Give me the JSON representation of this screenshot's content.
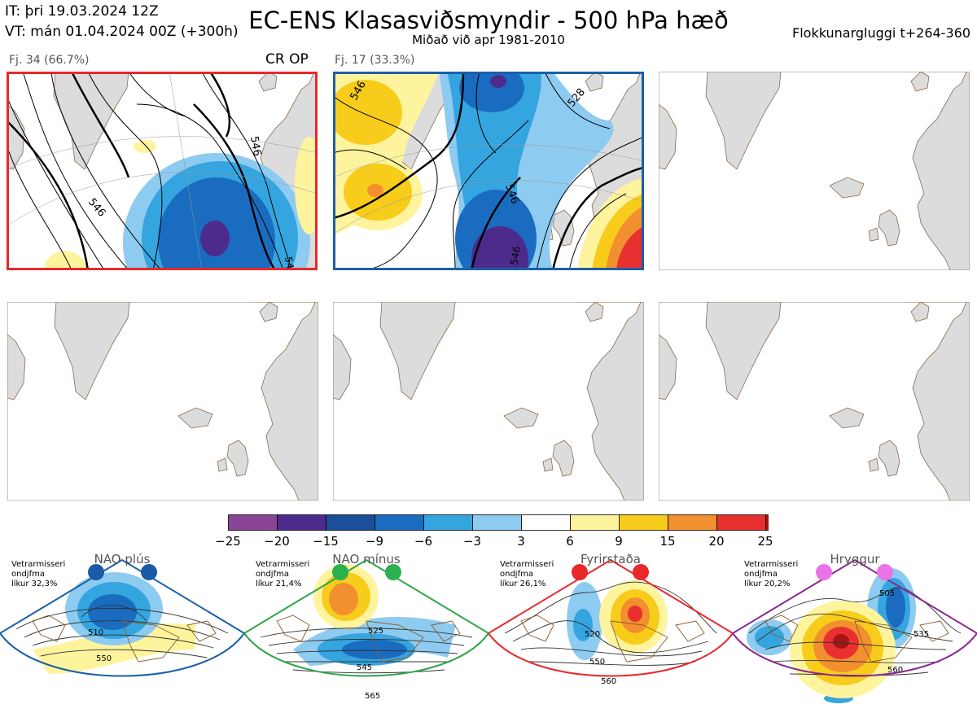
{
  "header": {
    "issue_time": "IT: þri 19.03.2024 12Z",
    "valid_time": "VT: mán 01.04.2024 00Z  (+300h)",
    "title": "EC-ENS Klasasviðsmyndir - 500 hPa hæð",
    "subtitle": "Miðað við apr 1981-2010",
    "window": "Flokkunargluggi t+264-360"
  },
  "panels": [
    {
      "label": "Fj. 34 (66.7%)",
      "tag": "CR OP",
      "border": "#e8282a"
    },
    {
      "label": "Fj. 17 (33.3%)",
      "tag": "",
      "border": "#1b5fa8"
    }
  ],
  "colorbar": {
    "ticks": [
      "−25",
      "−20",
      "−15",
      "−9",
      "−6",
      "−3",
      "3",
      "6",
      "9",
      "15",
      "20",
      "25"
    ],
    "colors": [
      "#8a4596",
      "#4d2b8c",
      "#1c4e9b",
      "#1a6cc0",
      "#35a5e0",
      "#8ecbf0",
      "#ffffff",
      "#fff49e",
      "#f8cc1b",
      "#f29030",
      "#e83030",
      "#a51416"
    ]
  },
  "regimes": [
    {
      "name": "NAO plús",
      "stat": [
        "Vetrarmisseri",
        "ondjfma",
        "líkur 32,3%"
      ],
      "color": "#1b5fa8",
      "dot": "#1a5aa8",
      "labels": [
        "510",
        "550"
      ]
    },
    {
      "name": "NAO mínus",
      "stat": [
        "Vetrarmisseri",
        "ondjfma",
        "líkur 21,4%"
      ],
      "color": "#2ea64a",
      "dot": "#2ab14e",
      "labels": [
        "525",
        "545",
        "565"
      ]
    },
    {
      "name": "Fyrirstaða",
      "stat": [
        "Vetrarmisseri",
        "ondjfma",
        "líkur 26,1%"
      ],
      "color": "#e8282a",
      "dot": "#e8282a",
      "labels": [
        "520",
        "550",
        "560"
      ]
    },
    {
      "name": "Hryggur",
      "stat": [
        "Vetrarmisseri",
        "ondjfma",
        "líkur 20,2%"
      ],
      "color": "#8a2a90",
      "dot": "#e874e8",
      "labels": [
        "505",
        "535",
        "560"
      ]
    }
  ]
}
